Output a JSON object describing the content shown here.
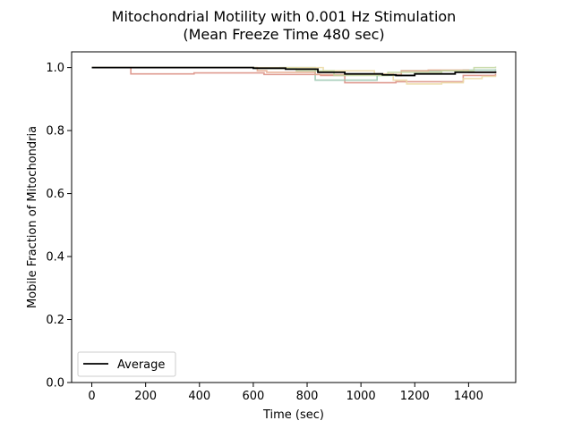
{
  "chart_data": {
    "type": "line",
    "line_style": "steps-post",
    "title_line1": "Mitochondrial Motility with 0.001 Hz Stimulation",
    "title_line2": "(Mean Freeze Time 480 sec)",
    "xlabel": "Time (sec)",
    "ylabel": "Mobile Fraction of Mitochondria",
    "xlim": [
      -75,
      1575
    ],
    "ylim": [
      0.0,
      1.05
    ],
    "xticks": [
      0,
      200,
      400,
      600,
      800,
      1000,
      1200,
      1400
    ],
    "yticks": [
      0.0,
      0.2,
      0.4,
      0.6,
      0.8,
      1.0
    ],
    "xtick_labels": [
      "0",
      "200",
      "400",
      "600",
      "800",
      "1000",
      "1200",
      "1400"
    ],
    "ytick_labels": [
      "0.0",
      "0.2",
      "0.4",
      "0.6",
      "0.8",
      "1.0"
    ],
    "grid": false,
    "legend": {
      "position": "lower-left",
      "label": "Average"
    },
    "series": [
      {
        "color": "#d98a7e",
        "opacity": 0.85,
        "width": 1.6,
        "legend": false,
        "x": [
          0,
          145,
          380,
          640,
          850,
          940,
          1130,
          1380,
          1500
        ],
        "y": [
          1.0,
          0.98,
          0.983,
          0.978,
          0.975,
          0.952,
          0.955,
          0.975,
          0.98
        ]
      },
      {
        "color": "#9cc8b0",
        "opacity": 0.9,
        "width": 1.6,
        "legend": false,
        "x": [
          0,
          600,
          700,
          830,
          1060,
          1150,
          1380,
          1500
        ],
        "y": [
          1.0,
          0.998,
          1.0,
          0.96,
          0.975,
          0.99,
          0.992,
          0.995
        ]
      },
      {
        "color": "#ecdca8",
        "opacity": 0.9,
        "width": 1.6,
        "legend": false,
        "x": [
          0,
          620,
          860,
          1050,
          1120,
          1170,
          1300,
          1380,
          1450,
          1500
        ],
        "y": [
          1.0,
          1.0,
          0.99,
          0.98,
          0.96,
          0.948,
          0.952,
          0.965,
          0.972,
          0.975
        ]
      },
      {
        "color": "#e6a88c",
        "opacity": 0.85,
        "width": 1.6,
        "legend": false,
        "x": [
          0,
          615,
          650,
          830,
          1150,
          1250,
          1400,
          1500
        ],
        "y": [
          1.0,
          0.99,
          0.985,
          0.978,
          0.99,
          0.992,
          0.985,
          0.988
        ]
      },
      {
        "color": "#c2d6a0",
        "opacity": 0.85,
        "width": 1.6,
        "legend": false,
        "x": [
          0,
          610,
          760,
          900,
          1100,
          1300,
          1420,
          1500
        ],
        "y": [
          1.0,
          0.997,
          0.99,
          0.975,
          0.985,
          0.99,
          1.0,
          1.003
        ]
      },
      {
        "color": "#000000",
        "opacity": 1.0,
        "width": 1.8,
        "legend": true,
        "name": "Average",
        "x": [
          0,
          600,
          720,
          840,
          940,
          1080,
          1130,
          1200,
          1350,
          1500
        ],
        "y": [
          1.0,
          0.998,
          0.995,
          0.985,
          0.98,
          0.977,
          0.975,
          0.98,
          0.985,
          0.988
        ]
      }
    ]
  }
}
